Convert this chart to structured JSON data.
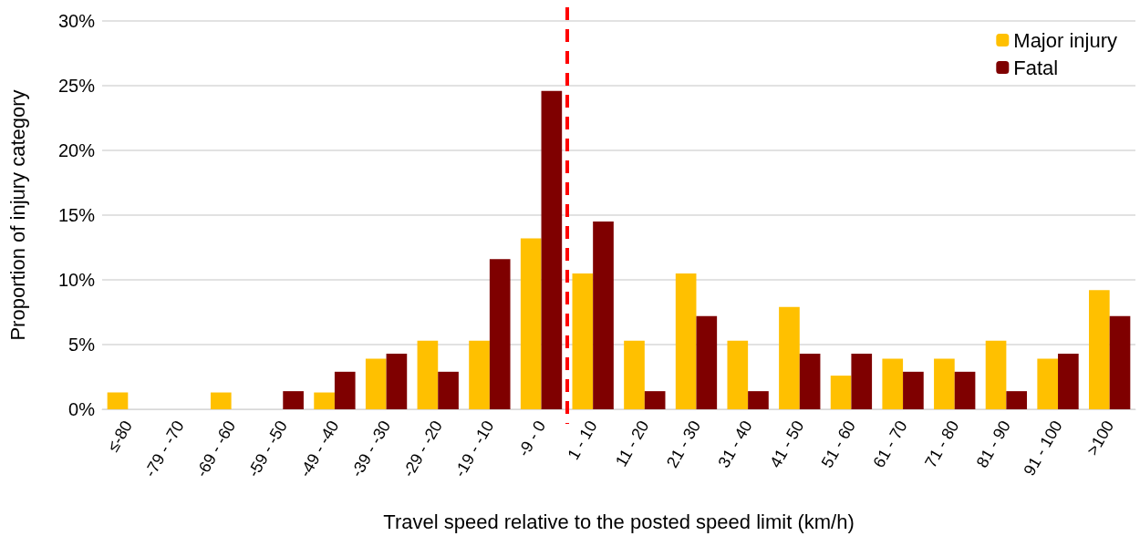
{
  "chart_data": {
    "type": "bar",
    "xlabel": "Travel speed relative to the posted speed limit (km/h)",
    "ylabel": "Proportion of injury category",
    "categories": [
      "≤-80",
      "-79 - -70",
      "-69 - -60",
      "-59 - -50",
      "-49 - -40",
      "-39 - -30",
      "-29 - -20",
      "-19 - -10",
      "-9 - 0",
      "1 - 10",
      "11 - 20",
      "21 - 30",
      "31 - 40",
      "41 - 50",
      "51 - 60",
      "61 - 70",
      "71 - 80",
      "81 - 90",
      "91 - 100",
      ">100"
    ],
    "series": [
      {
        "name": "Major injury",
        "color": "#ffc000",
        "values": [
          1.3,
          0,
          1.3,
          0,
          1.3,
          3.9,
          5.3,
          5.3,
          13.2,
          10.5,
          5.3,
          10.5,
          5.3,
          7.9,
          2.6,
          3.9,
          3.9,
          5.3,
          3.9,
          9.2
        ]
      },
      {
        "name": "Fatal",
        "color": "#7f0000",
        "values": [
          0,
          0,
          0,
          1.4,
          2.9,
          4.3,
          2.9,
          11.6,
          24.6,
          14.5,
          1.4,
          7.2,
          1.4,
          4.3,
          4.3,
          2.9,
          2.9,
          1.4,
          4.3,
          7.2
        ]
      }
    ],
    "ylim": [
      0,
      30
    ],
    "yticks": [
      {
        "value": 0,
        "label": "0%"
      },
      {
        "value": 5,
        "label": "5%"
      },
      {
        "value": 10,
        "label": "10%"
      },
      {
        "value": 15,
        "label": "15%"
      },
      {
        "value": 20,
        "label": "20%"
      },
      {
        "value": 25,
        "label": "25%"
      },
      {
        "value": 30,
        "label": "30%"
      }
    ],
    "grid": "y",
    "legend": "top right"
  }
}
